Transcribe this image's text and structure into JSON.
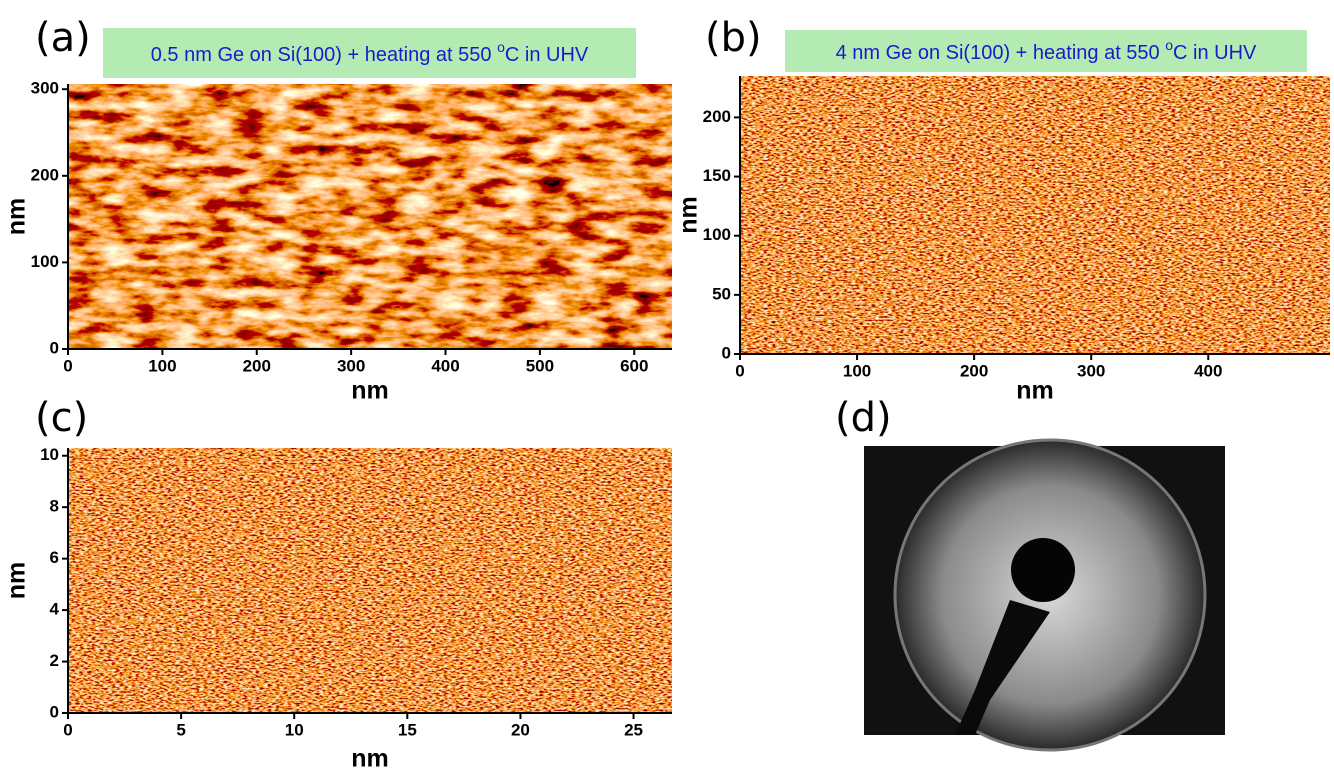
{
  "panels": [
    {
      "label": "(a)",
      "title": [
        "0.5 nm Ge on Si(100) + heating at 550 ",
        "o",
        "C in UHV"
      ],
      "xlabel": "nm",
      "ylabel": "nm",
      "xlim": [
        0,
        640
      ],
      "ylim": [
        0,
        306
      ],
      "xticks": [
        0,
        100,
        200,
        300,
        400,
        500,
        600
      ],
      "yticks": [
        0,
        100,
        200,
        300
      ]
    },
    {
      "label": "(b)",
      "title": [
        "4 nm Ge on Si(100) + heating at 550 ",
        "o",
        "C in UHV"
      ],
      "xlabel": "nm",
      "ylabel": "nm",
      "xlim": [
        0,
        504
      ],
      "ylim": [
        0,
        235
      ],
      "xticks": [
        0,
        100,
        200,
        300,
        400
      ],
      "yticks": [
        0,
        50,
        100,
        150,
        200
      ]
    },
    {
      "label": "(c)",
      "xlabel": "nm",
      "ylabel": "nm",
      "xlim": [
        0,
        26.7
      ],
      "ylim": [
        0,
        10.3
      ],
      "xticks": [
        0,
        5,
        10,
        15,
        20,
        25
      ],
      "yticks": [
        0,
        2,
        4,
        6,
        8,
        10
      ]
    },
    {
      "label": "(d)"
    }
  ]
}
